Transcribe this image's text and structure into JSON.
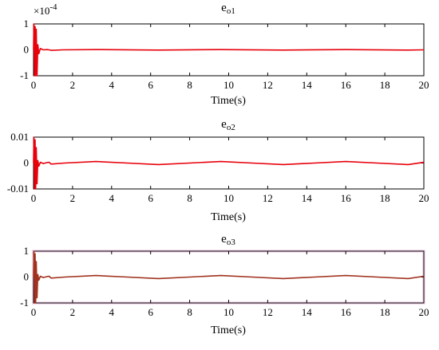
{
  "colors": {
    "red": "#e8000b",
    "brown": "#a0321e",
    "axis": "#000000",
    "halo": "#f6dcef"
  },
  "chart_data": [
    {
      "type": "line",
      "title": {
        "base": "e",
        "sub": "o1"
      },
      "xlabel": "Time(s)",
      "xlim": [
        0,
        20
      ],
      "ylim": [
        -1,
        1
      ],
      "xticks": [
        0,
        2,
        4,
        6,
        8,
        10,
        12,
        14,
        16,
        18,
        20
      ],
      "yticks": [
        -1,
        0,
        1
      ],
      "ytick_labels": [
        "-1",
        "0",
        "1"
      ],
      "exponent": {
        "base": "×10",
        "power": "-4"
      },
      "series": [
        {
          "color": "#e8000b",
          "x": [
            0,
            0.02,
            0.05,
            0.08,
            0.11,
            0.14,
            0.18,
            0.22,
            0.27,
            0.35,
            0.5,
            0.7,
            0.8,
            0.9,
            1.5,
            3.2,
            6.4,
            9.6,
            12.8,
            16,
            19.2,
            20
          ],
          "y": [
            0,
            1,
            -1,
            0.9,
            -1,
            0.8,
            -1,
            0.2,
            -0.15,
            0.05,
            0.0,
            0.01,
            0.0,
            -0.02,
            0.0,
            0.01,
            -0.01,
            0.01,
            -0.01,
            0.01,
            -0.01,
            0.0
          ]
        }
      ]
    },
    {
      "type": "line",
      "title": {
        "base": "e",
        "sub": "o2"
      },
      "xlabel": "Time(s)",
      "xlim": [
        0,
        20
      ],
      "ylim": [
        -0.01,
        0.01
      ],
      "xticks": [
        0,
        2,
        4,
        6,
        8,
        10,
        12,
        14,
        16,
        18,
        20
      ],
      "yticks": [
        -0.01,
        0,
        0.01
      ],
      "ytick_labels": [
        "-0.01",
        "0",
        "0.01"
      ],
      "series": [
        {
          "color": "#e8000b",
          "x": [
            0,
            0.02,
            0.05,
            0.08,
            0.11,
            0.14,
            0.18,
            0.22,
            0.27,
            0.35,
            0.5,
            0.7,
            0.8,
            0.9,
            1.6,
            3.2,
            4.8,
            6.4,
            8.0,
            9.6,
            11.2,
            12.8,
            14.4,
            16.0,
            17.6,
            19.2,
            20
          ],
          "y": [
            0,
            0.01,
            -0.01,
            0.009,
            -0.01,
            0.006,
            -0.008,
            0.001,
            -0.0012,
            0.0003,
            -0.0002,
            0.0002,
            0.0003,
            -0.0004,
            0.0,
            0.0006,
            0.0,
            -0.0006,
            0.0,
            0.0006,
            0.0,
            -0.0006,
            0.0,
            0.0006,
            0.0,
            -0.0006,
            0.0003
          ]
        }
      ]
    },
    {
      "type": "line",
      "title": {
        "base": "e",
        "sub": "o3"
      },
      "xlabel": "Time(s)",
      "xlim": [
        0,
        20
      ],
      "ylim": [
        -1,
        1
      ],
      "xticks": [
        0,
        2,
        4,
        6,
        8,
        10,
        12,
        14,
        16,
        18,
        20
      ],
      "yticks": [
        -1,
        0,
        1
      ],
      "ytick_labels": [
        "-1",
        "0",
        "1"
      ],
      "series": [
        {
          "color": "#a0321e",
          "x": [
            0,
            0.02,
            0.05,
            0.08,
            0.11,
            0.14,
            0.18,
            0.22,
            0.27,
            0.35,
            0.5,
            0.7,
            0.8,
            0.9,
            1.6,
            3.2,
            4.8,
            6.4,
            8.0,
            9.6,
            11.2,
            12.8,
            14.4,
            16.0,
            17.6,
            19.2,
            20
          ],
          "y": [
            0,
            1,
            -1,
            0.9,
            -1,
            0.6,
            -0.8,
            0.1,
            -0.12,
            0.03,
            -0.02,
            0.02,
            0.03,
            -0.04,
            0.0,
            0.06,
            0.0,
            -0.06,
            0.0,
            0.06,
            0.0,
            -0.06,
            0.0,
            0.06,
            0.0,
            -0.06,
            0.03
          ]
        }
      ]
    }
  ]
}
